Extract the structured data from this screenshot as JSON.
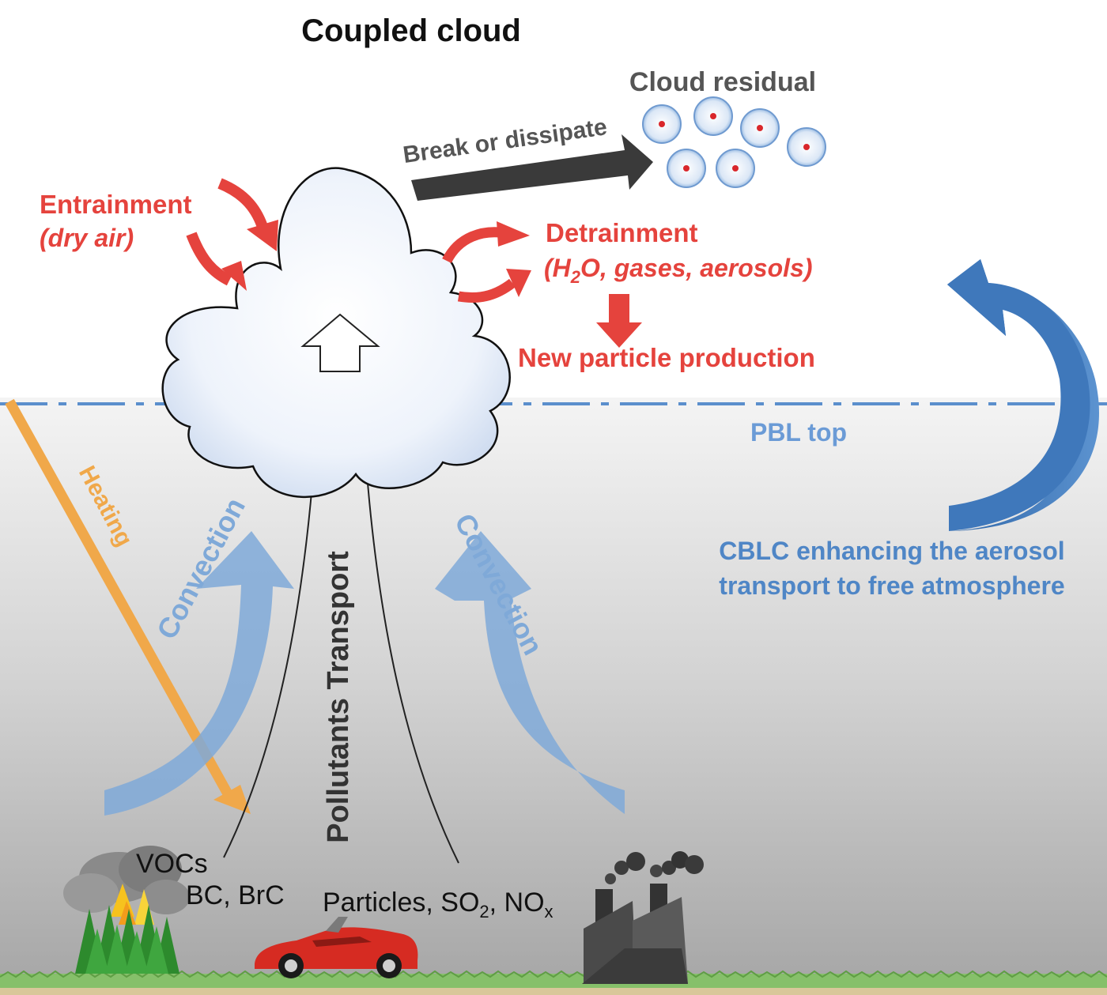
{
  "title": "Coupled cloud",
  "labels": {
    "cloud_residual": "Cloud residual",
    "break_or_dissipate": "Break or dissipate",
    "entrainment": "Entrainment",
    "entrainment_note": "(dry air)",
    "detrainment": "Detrainment",
    "detrainment_note_prefix": "(H",
    "detrainment_note_sub": "2",
    "detrainment_note_suffix": "O, gases, aerosols)",
    "new_particle_production": "New particle production",
    "pbl_top": "PBL top",
    "cblc_line1": "CBLC enhancing the aerosol",
    "cblc_line2": "transport to free atmosphere",
    "heating": "Heating",
    "convection_left": "Convection",
    "convection_right": "Convection",
    "pollutants_transport": "Pollutants Transport",
    "vocs": "VOCs",
    "bc_brc": "BC, BrC",
    "particles_prefix": "Particles, SO",
    "particles_sub1": "2",
    "particles_mid": ", NO",
    "particles_sub2": "x"
  },
  "icons": {
    "fire": "forest-fire-icon",
    "car": "car-icon",
    "factory": "factory-icon",
    "residual": "aerosol-particle-icon"
  },
  "colors": {
    "red": "#e5433d",
    "blue": "#4f86c6",
    "light_blue": "#7fa9d8",
    "orange": "#f0a84a",
    "dark_gray": "#3a3a3a",
    "title_gray": "#555555",
    "ground_green": "#86c06a"
  }
}
